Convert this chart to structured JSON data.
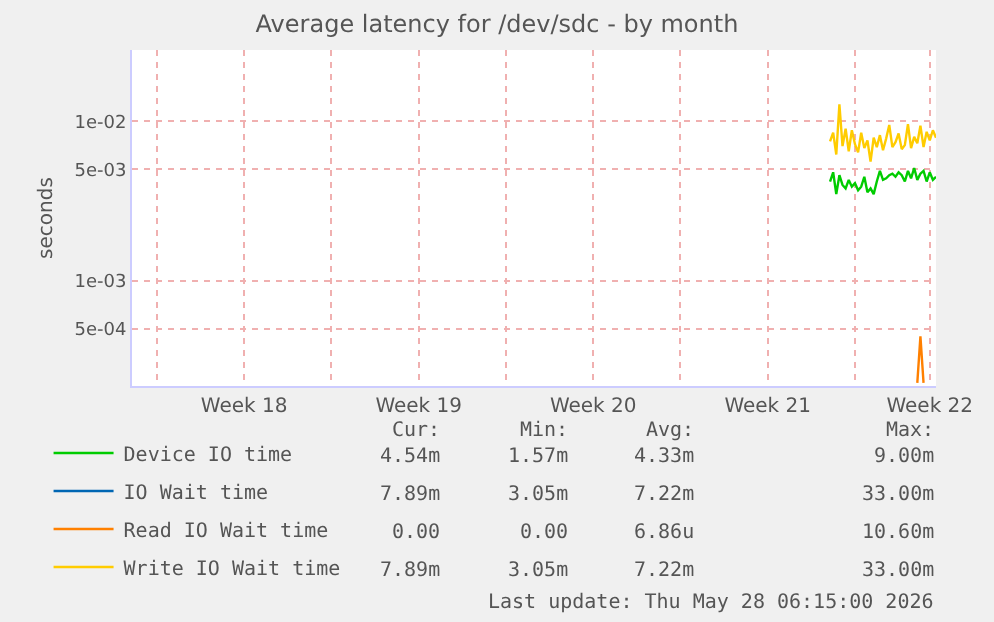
{
  "chart_data": {
    "type": "line",
    "title": "Average latency for /dev/sdc - by month",
    "ylabel": "seconds",
    "log": true,
    "grid": true,
    "legend": "bottom",
    "line_style": "solid",
    "marker": "none",
    "x": [
      "2026-05-24T00:00",
      "2026-05-24T03:00",
      "2026-05-24T06:00",
      "2026-05-24T09:00",
      "2026-05-24T12:00",
      "2026-05-24T15:00",
      "2026-05-24T18:00",
      "2026-05-24T21:00",
      "2026-05-25T00:00",
      "2026-05-25T03:00",
      "2026-05-25T06:00",
      "2026-05-25T09:00",
      "2026-05-25T12:00",
      "2026-05-25T15:00",
      "2026-05-25T18:00",
      "2026-05-25T21:00",
      "2026-05-26T00:00",
      "2026-05-26T03:00",
      "2026-05-26T06:00",
      "2026-05-26T09:00",
      "2026-05-26T12:00",
      "2026-05-26T15:00",
      "2026-05-26T18:00",
      "2026-05-26T21:00",
      "2026-05-27T00:00",
      "2026-05-27T03:00",
      "2026-05-27T06:00",
      "2026-05-27T09:00",
      "2026-05-27T12:00",
      "2026-05-27T15:00",
      "2026-05-27T18:00",
      "2026-05-27T21:00",
      "2026-05-28T00:00",
      "2026-05-28T03:00",
      "2026-05-28T06:00"
    ],
    "series": [
      {
        "name": "Device IO time",
        "color": "#00cc00",
        "values": [
          0.0042,
          0.0048,
          0.0035,
          0.0046,
          0.004,
          0.0038,
          0.0043,
          0.0039,
          0.0041,
          0.0037,
          0.0039,
          0.0045,
          0.0036,
          0.0038,
          0.0035,
          0.0042,
          0.0049,
          0.0043,
          0.0044,
          0.0046,
          0.0047,
          0.0045,
          0.0048,
          0.0046,
          0.0042,
          0.0049,
          0.0044,
          0.0051,
          0.0043,
          0.0047,
          0.0049,
          0.0042,
          0.0048,
          0.0043,
          0.0045
        ]
      },
      {
        "name": "IO Wait time",
        "color": "#0066b3",
        "values": [
          null,
          null,
          null,
          null,
          null,
          null,
          null,
          null,
          null,
          null,
          null,
          null,
          null,
          null,
          null,
          null,
          null,
          null,
          null,
          null,
          null,
          null,
          null,
          null,
          null,
          null,
          null,
          null,
          null,
          null,
          null,
          null,
          null,
          null,
          null
        ]
      },
      {
        "name": "Read IO Wait time",
        "color": "#ff8000",
        "values": [
          null,
          null,
          null,
          null,
          null,
          null,
          null,
          null,
          null,
          null,
          null,
          null,
          null,
          null,
          null,
          null,
          null,
          null,
          null,
          null,
          null,
          null,
          null,
          null,
          null,
          null,
          null,
          null,
          0.00023,
          0.00045,
          0.00023,
          null,
          null,
          null,
          null
        ]
      },
      {
        "name": "Write IO Wait time",
        "color": "#ffcc00",
        "values": [
          0.0075,
          0.0085,
          0.0062,
          0.0128,
          0.007,
          0.009,
          0.0065,
          0.0088,
          0.0072,
          0.0064,
          0.0085,
          0.0068,
          0.0076,
          0.0056,
          0.0079,
          0.0069,
          0.0082,
          0.0066,
          0.0078,
          0.0095,
          0.0069,
          0.0074,
          0.0084,
          0.0067,
          0.0071,
          0.0096,
          0.0068,
          0.008,
          0.0073,
          0.0094,
          0.0069,
          0.0086,
          0.0076,
          0.0088,
          0.0079
        ]
      }
    ],
    "xlim": [
      "2026-04-26T00:00",
      "2026-05-28T06:00"
    ],
    "xticks": [
      {
        "value": "2026-04-27",
        "label": null
      },
      {
        "value": "2026-04-30T12:00",
        "label": "Week 18"
      },
      {
        "value": "2026-05-04",
        "label": null
      },
      {
        "value": "2026-05-07T12:00",
        "label": "Week 19"
      },
      {
        "value": "2026-05-11",
        "label": null
      },
      {
        "value": "2026-05-14T12:00",
        "label": "Week 20"
      },
      {
        "value": "2026-05-18",
        "label": null
      },
      {
        "value": "2026-05-21T12:00",
        "label": "Week 21"
      },
      {
        "value": "2026-05-25",
        "label": null
      },
      {
        "value": "2026-05-28T00:00",
        "label": "Week 22"
      }
    ],
    "ylim": [
      0.00022,
      0.028
    ],
    "yticks": [
      {
        "value": 0.0005,
        "label": "5e-04"
      },
      {
        "value": 0.001,
        "label": "1e-03"
      },
      {
        "value": 0.005,
        "label": "5e-03"
      },
      {
        "value": 0.01,
        "label": "1e-02"
      }
    ],
    "annotations": [
      "Cur:",
      "Min:",
      "Avg:",
      "Max:",
      "4.54m",
      "1.57m",
      "4.33m",
      "9.00m",
      "7.89m",
      "3.05m",
      "7.22m",
      "33.00m",
      "0.00",
      "0.00",
      "6.86u",
      "10.60m",
      "7.89m",
      "3.05m",
      "7.22m",
      "33.00m",
      "Last update: Thu May 28 06:15:00 2026"
    ]
  }
}
